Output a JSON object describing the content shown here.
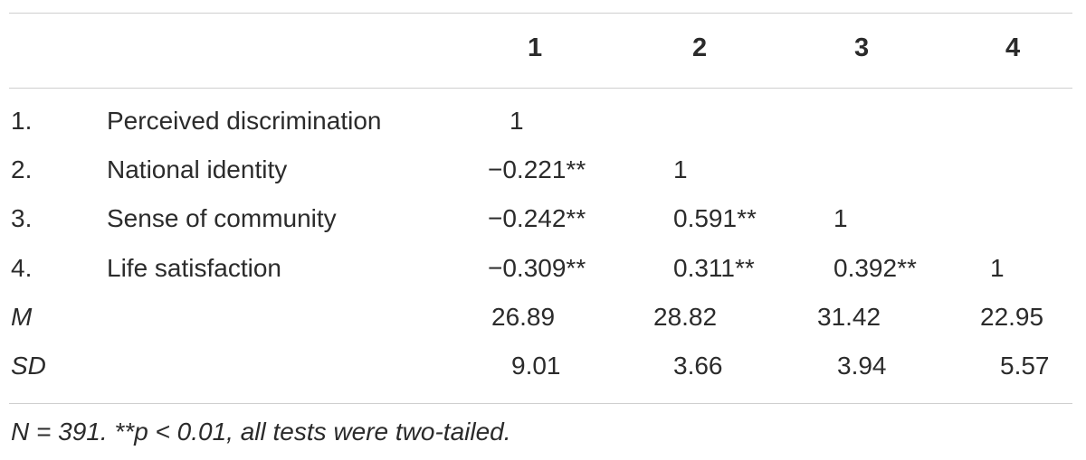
{
  "table": {
    "headers": [
      "1",
      "2",
      "3",
      "4"
    ],
    "rows": [
      {
        "num": "1.",
        "variable": "Perceived discrimination",
        "values": [
          "1",
          "",
          "",
          ""
        ]
      },
      {
        "num": "2.",
        "variable": "National identity",
        "values": [
          "−0.221**",
          "1",
          "",
          ""
        ]
      },
      {
        "num": "3.",
        "variable": "Sense of community",
        "values": [
          "−0.242**",
          "0.591**",
          "1",
          ""
        ]
      },
      {
        "num": "4.",
        "variable": "Life satisfaction",
        "values": [
          "−0.309**",
          "0.311**",
          "0.392**",
          "1"
        ]
      },
      {
        "num": "M",
        "variable": "",
        "values": [
          "26.89",
          "28.82",
          "31.42",
          "22.95"
        ]
      },
      {
        "num": "SD",
        "variable": "",
        "values": [
          "9.01",
          "3.66",
          "3.94",
          "5.57"
        ]
      }
    ],
    "note": "N = 391. **p < 0.01, all tests were two-tailed."
  }
}
